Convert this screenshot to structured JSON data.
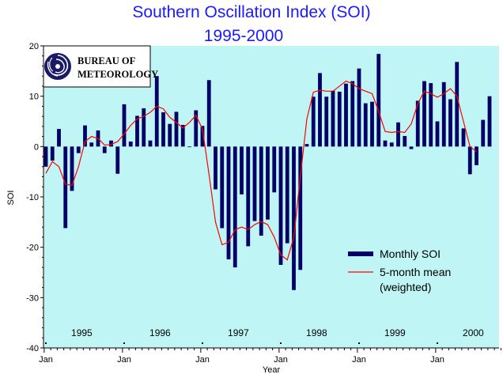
{
  "chart_data": {
    "type": "bar",
    "title": "Southern Oscillation Index (SOI)",
    "subtitle": "1995-2000",
    "xlabel": "Year",
    "ylabel": "SOI",
    "ylim": [
      -40,
      20
    ],
    "yticks": [
      20,
      10,
      0,
      -10,
      -20,
      -30,
      -40
    ],
    "x_axis_ticks": [
      "Jan",
      "Jan",
      "Jan",
      "Jan",
      "Jan",
      "Jan"
    ],
    "year_labels": [
      "1995",
      "1996",
      "1997",
      "1998",
      "1999",
      "2000"
    ],
    "start": "1995-01",
    "grid": false,
    "legend_position": "bottom-right",
    "colors": {
      "plot_background": "#bff5f5",
      "bar": "#000066",
      "mean_line": "#ff0000",
      "title": "#1a1aff"
    },
    "series": [
      {
        "name": "Monthly SOI",
        "kind": "bar",
        "values": [
          -4.0,
          -2.8,
          3.5,
          -16.2,
          -8.8,
          -1.3,
          4.2,
          0.8,
          3.2,
          -1.3,
          1.2,
          -5.4,
          8.4,
          1.0,
          6.1,
          7.6,
          1.2,
          14.0,
          6.8,
          4.5,
          6.9,
          4.3,
          -0.1,
          7.2,
          4.1,
          13.2,
          -8.5,
          -16.2,
          -22.4,
          -24.0,
          -9.5,
          -19.8,
          -14.8,
          -17.7,
          -14.5,
          -9.1,
          -23.5,
          -19.2,
          -28.5,
          -24.5,
          0.5,
          9.9,
          14.6,
          9.9,
          11.1,
          10.9,
          12.5,
          13.0,
          15.5,
          8.6,
          8.9,
          18.4,
          1.2,
          0.8,
          4.8,
          2.1,
          -0.5,
          9.1,
          13.0,
          12.6,
          5.0,
          12.8,
          9.4,
          16.8,
          3.6,
          -5.5,
          -3.7,
          5.3,
          10.0
        ]
      },
      {
        "name": "5-month mean (weighted)",
        "kind": "line",
        "values": [
          -5.3,
          -3.0,
          -4.0,
          -7.5,
          -7.7,
          -4.0,
          1.0,
          2.0,
          1.6,
          0.3,
          0.4,
          1.0,
          2.5,
          4.2,
          5.5,
          6.0,
          6.8,
          8.0,
          7.5,
          5.8,
          4.8,
          3.7,
          4.8,
          6.2,
          3.5,
          -5.5,
          -15.0,
          -19.5,
          -19.0,
          -16.5,
          -16.0,
          -16.5,
          -15.5,
          -14.9,
          -15.5,
          -18.0,
          -21.5,
          -22.5,
          -18.0,
          -6.0,
          5.5,
          10.8,
          11.2,
          11.0,
          11.0,
          12.0,
          13.0,
          12.5,
          11.5,
          11.0,
          10.5,
          7.0,
          3.0,
          2.8,
          3.0,
          2.8,
          4.5,
          8.5,
          11.0,
          10.5,
          9.8,
          10.5,
          11.5,
          10.0,
          5.0,
          0.0,
          -1.0,
          null,
          null
        ]
      }
    ]
  },
  "legend": {
    "bar_label": "Monthly SOI",
    "line_label_1": "5-month mean",
    "line_label_2": "(weighted)"
  },
  "logo": {
    "icon": "bureau-of-meteorology-swirl-logo",
    "line1": "BUREAU OF",
    "line2": "METEOROLOGY"
  }
}
